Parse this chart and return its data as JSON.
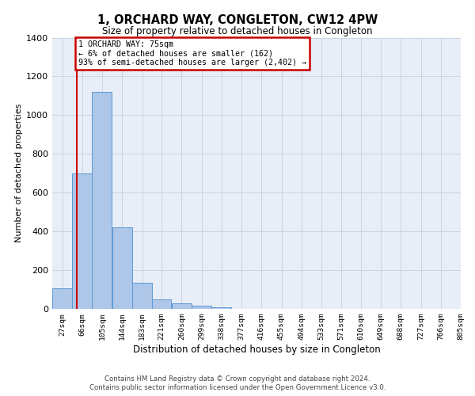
{
  "title": "1, ORCHARD WAY, CONGLETON, CW12 4PW",
  "subtitle": "Size of property relative to detached houses in Congleton",
  "xlabel": "Distribution of detached houses by size in Congleton",
  "ylabel": "Number of detached properties",
  "bins": [
    27,
    66,
    105,
    144,
    183,
    221,
    260,
    299,
    338,
    377,
    416,
    455,
    494,
    533,
    571,
    610,
    649,
    688,
    727,
    766,
    805
  ],
  "counts": [
    105,
    700,
    1120,
    420,
    135,
    50,
    28,
    18,
    10,
    0,
    0,
    0,
    0,
    0,
    0,
    0,
    0,
    0,
    0,
    0
  ],
  "bar_color": "#aec6e8",
  "bar_edge_color": "#5b9bd5",
  "red_line_x": 75,
  "annotation_text": "1 ORCHARD WAY: 75sqm\n← 6% of detached houses are smaller (162)\n93% of semi-detached houses are larger (2,402) →",
  "annotation_box_color": "#ffffff",
  "annotation_box_edge": "#cc0000",
  "ylim": [
    0,
    1400
  ],
  "yticks": [
    0,
    200,
    400,
    600,
    800,
    1000,
    1200,
    1400
  ],
  "grid_color": "#c8d0dc",
  "bg_color": "#e8eef7",
  "footer1": "Contains HM Land Registry data © Crown copyright and database right 2024.",
  "footer2": "Contains public sector information licensed under the Open Government Licence v3.0.",
  "tick_labels": [
    "27sqm",
    "66sqm",
    "105sqm",
    "144sqm",
    "183sqm",
    "221sqm",
    "260sqm",
    "299sqm",
    "338sqm",
    "377sqm",
    "416sqm",
    "455sqm",
    "494sqm",
    "533sqm",
    "571sqm",
    "610sqm",
    "649sqm",
    "688sqm",
    "727sqm",
    "766sqm",
    "805sqm"
  ]
}
